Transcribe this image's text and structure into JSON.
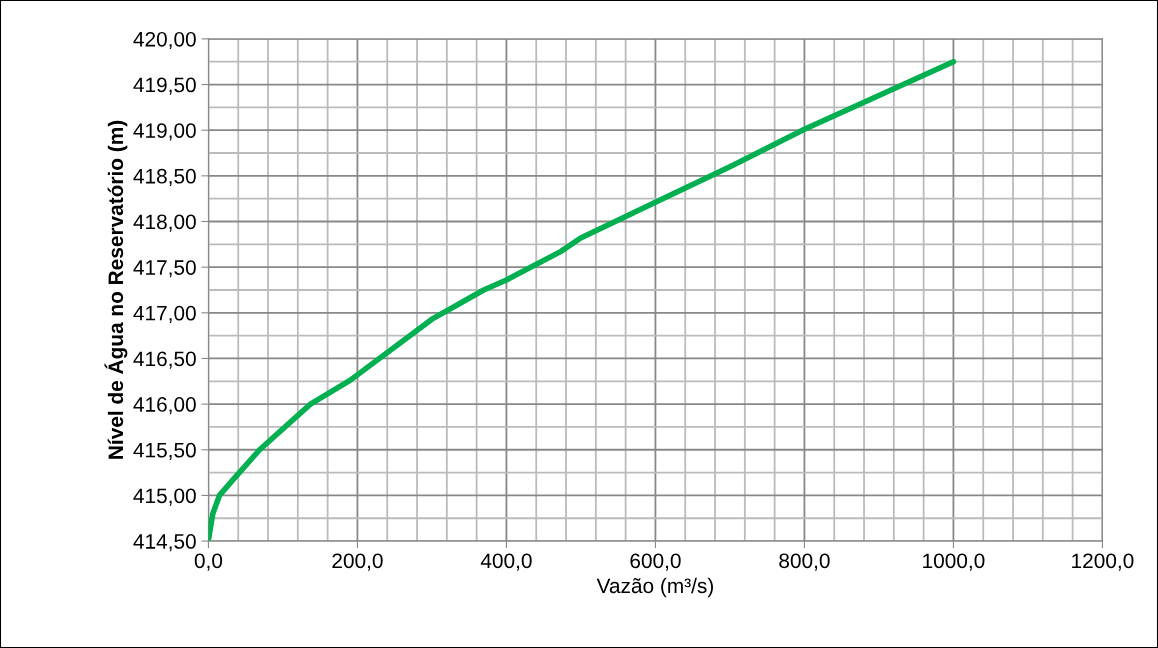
{
  "chart_data": {
    "type": "line",
    "xlabel": "Vazão (m³/s)",
    "ylabel": "Nível de Água no Reservatório (m)",
    "x": [
      0,
      0.4,
      5.8,
      14.8,
      32.8,
      68.7,
      136.9,
      190,
      300,
      369.5,
      400,
      472.7,
      499.7,
      600,
      700,
      800,
      900,
      1000
    ],
    "series": [
      {
        "color": "#00b050",
        "values": [
          414.55,
          414.53,
          414.8,
          415.0,
          415.17,
          415.5,
          416.0,
          416.26,
          416.93,
          417.25,
          417.36,
          417.67,
          417.82,
          418.21,
          418.6,
          419.01,
          419.38,
          419.75
        ]
      }
    ],
    "xlim": [
      0,
      1200
    ],
    "ylim": [
      414.5,
      420
    ],
    "xticks": [
      {
        "value": 0,
        "label": "0,0"
      },
      {
        "value": 200,
        "label": "200,0"
      },
      {
        "value": 400,
        "label": "400,0"
      },
      {
        "value": 600,
        "label": "600,0"
      },
      {
        "value": 800,
        "label": "800,0"
      },
      {
        "value": 1000,
        "label": "1000,0"
      },
      {
        "value": 1200,
        "label": "1200,0"
      }
    ],
    "yticks": [
      {
        "value": 414.5,
        "label": "414,50"
      },
      {
        "value": 415,
        "label": "415,00"
      },
      {
        "value": 415.5,
        "label": "415,50"
      },
      {
        "value": 416,
        "label": "416,00"
      },
      {
        "value": 416.5,
        "label": "416,50"
      },
      {
        "value": 417,
        "label": "417,00"
      },
      {
        "value": 417.5,
        "label": "417,50"
      },
      {
        "value": 418,
        "label": "418,00"
      },
      {
        "value": 418.5,
        "label": "418,50"
      },
      {
        "value": 419,
        "label": "419,00"
      },
      {
        "value": 419.5,
        "label": "419,50"
      },
      {
        "value": 420,
        "label": "420,00"
      }
    ],
    "grid": true,
    "marker": "none",
    "line_style": "solid"
  }
}
